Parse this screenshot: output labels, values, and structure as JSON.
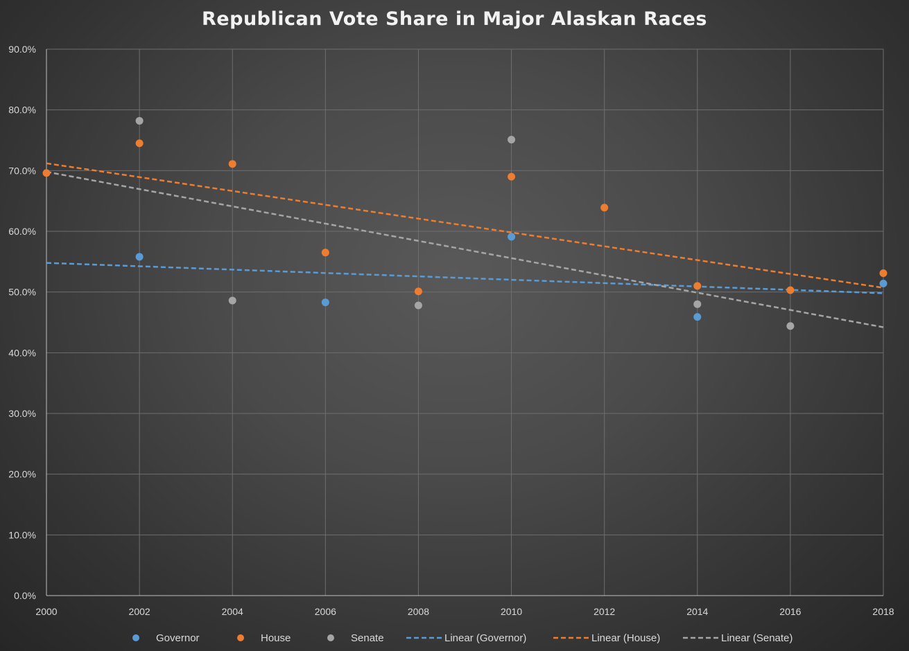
{
  "chart_data": {
    "type": "scatter",
    "title": "Republican Vote Share in Major Alaskan Races",
    "xlabel": "",
    "ylabel": "",
    "xlim": [
      2000,
      2018
    ],
    "ylim": [
      0,
      90
    ],
    "x_ticks": [
      "2000",
      "2002",
      "2004",
      "2006",
      "2008",
      "2010",
      "2012",
      "2014",
      "2016",
      "2018"
    ],
    "y_ticks": [
      "0.0%",
      "10.0%",
      "20.0%",
      "30.0%",
      "40.0%",
      "50.0%",
      "60.0%",
      "70.0%",
      "80.0%",
      "90.0%"
    ],
    "grid": true,
    "legend_position": "bottom",
    "series": [
      {
        "name": "Governor",
        "color": "#5b9bd5",
        "points": [
          [
            2002,
            55.8
          ],
          [
            2006,
            48.3
          ],
          [
            2010,
            59.1
          ],
          [
            2014,
            45.9
          ],
          [
            2018,
            51.4
          ]
        ]
      },
      {
        "name": "House",
        "color": "#ed7d31",
        "points": [
          [
            2000,
            69.6
          ],
          [
            2002,
            74.5
          ],
          [
            2004,
            71.1
          ],
          [
            2006,
            56.5
          ],
          [
            2008,
            50.1
          ],
          [
            2010,
            69.0
          ],
          [
            2012,
            63.9
          ],
          [
            2014,
            51.0
          ],
          [
            2016,
            50.3
          ],
          [
            2018,
            53.1
          ]
        ]
      },
      {
        "name": "Senate",
        "color": "#a5a5a5",
        "points": [
          [
            2002,
            78.2
          ],
          [
            2004,
            48.6
          ],
          [
            2008,
            47.8
          ],
          [
            2010,
            75.1
          ],
          [
            2014,
            48.0
          ],
          [
            2016,
            44.4
          ]
        ]
      }
    ],
    "trendlines": [
      {
        "name": "Linear (Governor)",
        "color": "#5b9bd5",
        "type": "linear",
        "from": [
          2000,
          54.8
        ],
        "to": [
          2018,
          49.8
        ]
      },
      {
        "name": "Linear (House)",
        "color": "#ed7d31",
        "type": "linear",
        "from": [
          2000,
          71.2
        ],
        "to": [
          2018,
          50.7
        ]
      },
      {
        "name": "Linear (Senate)",
        "color": "#a5a5a5",
        "type": "linear",
        "from": [
          2000,
          69.8
        ],
        "to": [
          2018,
          44.2
        ]
      }
    ]
  }
}
